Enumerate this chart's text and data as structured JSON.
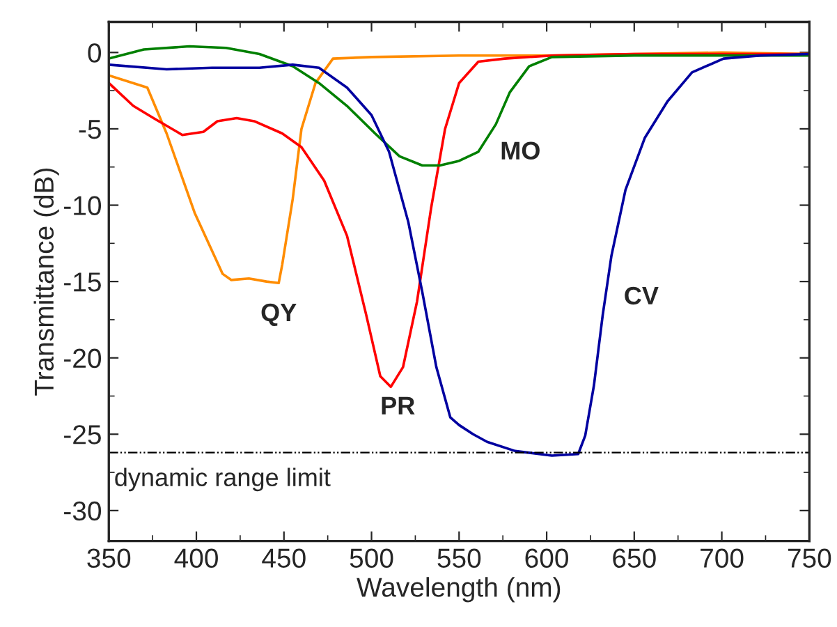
{
  "chart_data": {
    "type": "line",
    "xlabel": "Wavelength (nm)",
    "ylabel": "Transmittance (dB)",
    "xlim": [
      350,
      750
    ],
    "xticks": [
      350,
      400,
      450,
      500,
      550,
      600,
      650,
      700,
      750
    ],
    "ylim": [
      -32,
      2
    ],
    "yticks": [
      0,
      -5,
      -10,
      -15,
      -20,
      -25,
      -30
    ],
    "grid": false,
    "legend": false,
    "marker": "none",
    "line_style": "solid",
    "series": [
      {
        "name": "QY",
        "color": "#ff8c00",
        "x": [
          350,
          372,
          383,
          399,
          415,
          420,
          430,
          440,
          447,
          449,
          455,
          460,
          468,
          478,
          500,
          550,
          600,
          650,
          700,
          750
        ],
        "values": [
          -1.5,
          -2.3,
          -5.3,
          -10.5,
          -14.5,
          -14.9,
          -14.8,
          -15.0,
          -15.1,
          -13.9,
          -9.6,
          -5.0,
          -2.0,
          -0.4,
          -0.3,
          -0.2,
          -0.2,
          -0.1,
          0.0,
          -0.1
        ]
      },
      {
        "name": "PR",
        "color": "#ff0000",
        "x": [
          350,
          364,
          377,
          392,
          404,
          412,
          423,
          433,
          449,
          460,
          473,
          486,
          497,
          505,
          511,
          518,
          526,
          534,
          542,
          550,
          561,
          576,
          603,
          650,
          700,
          750
        ],
        "values": [
          -2.0,
          -3.5,
          -4.4,
          -5.4,
          -5.2,
          -4.5,
          -4.3,
          -4.5,
          -5.3,
          -6.2,
          -8.4,
          -12.0,
          -17.2,
          -21.2,
          -21.9,
          -20.6,
          -16.3,
          -10.2,
          -5.0,
          -2.0,
          -0.6,
          -0.4,
          -0.2,
          -0.1,
          -0.1,
          -0.1
        ]
      },
      {
        "name": "MO",
        "color": "#008000",
        "x": [
          350,
          370,
          396,
          417,
          436,
          455,
          470,
          486,
          502,
          516,
          529,
          539,
          550,
          561,
          571,
          579,
          590,
          603,
          650,
          700,
          750
        ],
        "values": [
          -0.4,
          0.2,
          0.4,
          0.3,
          -0.1,
          -0.9,
          -2.0,
          -3.5,
          -5.3,
          -6.8,
          -7.4,
          -7.4,
          -7.1,
          -6.5,
          -4.7,
          -2.6,
          -0.9,
          -0.3,
          -0.2,
          -0.2,
          -0.2
        ]
      },
      {
        "name": "CV",
        "color": "#0000a0",
        "x": [
          350,
          383,
          409,
          436,
          455,
          470,
          486,
          500,
          510,
          521,
          529,
          537,
          545,
          550,
          558,
          566,
          582,
          603,
          618,
          622,
          627,
          632,
          637,
          645,
          656,
          669,
          683,
          701,
          722,
          750
        ],
        "values": [
          -0.8,
          -1.1,
          -1.0,
          -1.0,
          -0.8,
          -1.0,
          -2.3,
          -4.1,
          -6.5,
          -11.1,
          -15.7,
          -20.6,
          -23.9,
          -24.4,
          -25.0,
          -25.5,
          -26.1,
          -26.4,
          -26.3,
          -25.1,
          -21.8,
          -17.2,
          -13.3,
          -9.0,
          -5.6,
          -3.2,
          -1.3,
          -0.4,
          -0.2,
          -0.1
        ]
      }
    ],
    "ref_lines": [
      {
        "axis": "y",
        "value": -26.2,
        "label": "dynamic range limit",
        "color": "#000000",
        "line_style": "dashed"
      }
    ]
  }
}
